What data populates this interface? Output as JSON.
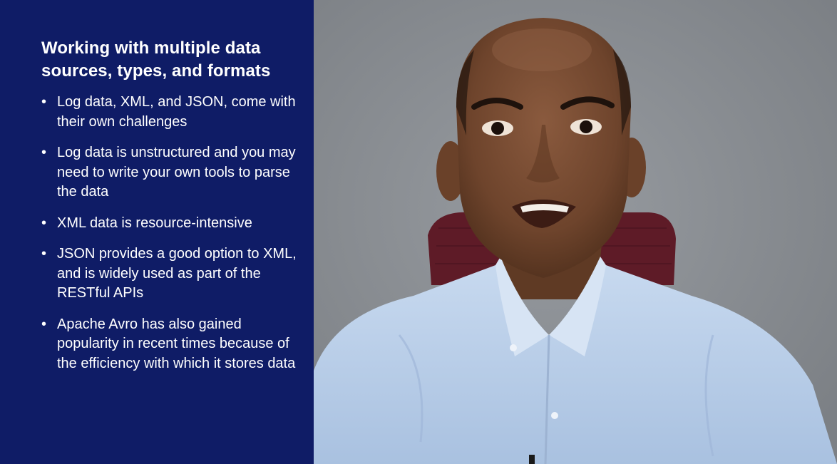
{
  "slide": {
    "title": "Working with multiple data sources, types, and formats",
    "bullets": [
      "Log data, XML, and JSON, come with their own challenges",
      "Log data is unstructured and you may need to write your own tools to parse the data",
      "XML data is resource-intensive",
      "JSON provides a good option to XML, and is widely used as part of the RESTful APIs",
      "Apache Avro has also gained popularity in recent times because of the efficiency with which it stores data"
    ]
  },
  "colors": {
    "panel_background": "#0f1c66",
    "text": "#ffffff",
    "wall": "#8a8e93",
    "shirt": "#b9cfe9",
    "chair": "#6a1f2c"
  }
}
